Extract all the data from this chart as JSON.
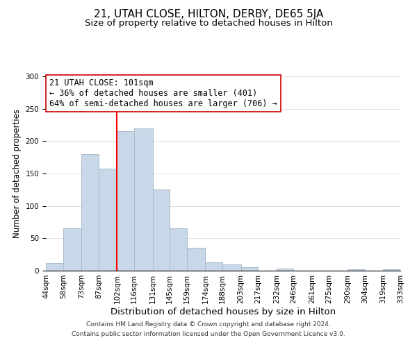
{
  "title": "21, UTAH CLOSE, HILTON, DERBY, DE65 5JA",
  "subtitle": "Size of property relative to detached houses in Hilton",
  "xlabel": "Distribution of detached houses by size in Hilton",
  "ylabel": "Number of detached properties",
  "bin_edges": [
    44,
    58,
    73,
    87,
    102,
    116,
    131,
    145,
    159,
    174,
    188,
    203,
    217,
    232,
    246,
    261,
    275,
    290,
    304,
    319,
    333
  ],
  "bar_heights": [
    12,
    65,
    180,
    158,
    215,
    220,
    125,
    65,
    35,
    13,
    10,
    5,
    0,
    3,
    0,
    0,
    0,
    2,
    0,
    2
  ],
  "bar_color": "#c8d8e8",
  "bar_edgecolor": "#aabbcc",
  "red_line_x": 102,
  "ylim": [
    0,
    300
  ],
  "yticks": [
    0,
    50,
    100,
    150,
    200,
    250,
    300
  ],
  "annotation_title": "21 UTAH CLOSE: 101sqm",
  "annotation_line1": "← 36% of detached houses are smaller (401)",
  "annotation_line2": "64% of semi-detached houses are larger (706) →",
  "annotation_box_color": "#ffffff",
  "annotation_box_edgecolor": "#cc0000",
  "footnote1": "Contains HM Land Registry data © Crown copyright and database right 2024.",
  "footnote2": "Contains public sector information licensed under the Open Government Licence v3.0.",
  "title_fontsize": 11,
  "subtitle_fontsize": 9.5,
  "xlabel_fontsize": 9.5,
  "ylabel_fontsize": 8.5,
  "tick_fontsize": 7.5,
  "annotation_fontsize": 8.5,
  "footnote_fontsize": 6.5
}
